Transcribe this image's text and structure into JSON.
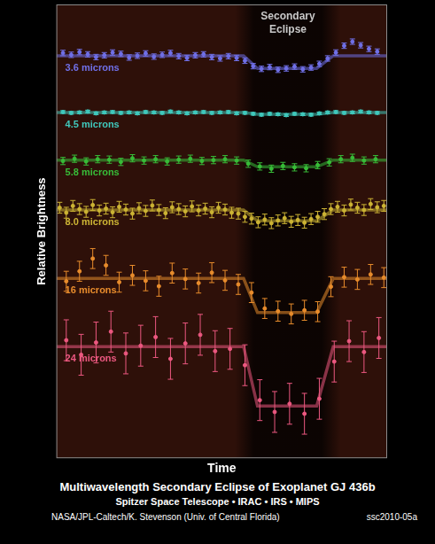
{
  "chart_data": {
    "type": "scatter",
    "title": "Multiwavelength Secondary Eclipse of Exoplanet GJ 436b",
    "subtitle": "Spitzer Space Telescope • IRAC • IRS • MIPS",
    "credit": "NASA/JPL-Caltech/K. Stevenson (Univ. of Central Florida)",
    "image_id": "ssc2010-05a",
    "x_label": "Time",
    "y_label": "Relative Brightness",
    "annotation": "Secondary Eclipse",
    "eclipse_window": [
      54,
      86
    ],
    "xlim": [
      0,
      100
    ],
    "ylim": [
      0,
      100
    ],
    "grid": false,
    "tick_labels": false,
    "series": [
      {
        "name": "3.6 microns",
        "color": "#7070e8",
        "error": 0.6,
        "x": [
          2,
          4.5,
          7,
          9.5,
          12,
          14.5,
          17,
          19.5,
          22,
          24.5,
          27,
          29.5,
          32,
          34.5,
          37,
          39.5,
          42,
          44.5,
          47,
          49.5,
          52,
          54.5,
          57,
          59.5,
          62,
          64.5,
          67,
          69.5,
          72,
          74.5,
          77,
          79.5,
          82,
          84.5,
          87,
          89.5,
          92,
          94.5,
          97
        ],
        "values": [
          89.3,
          88.9,
          89.5,
          89.0,
          88.4,
          88.8,
          89.4,
          89.1,
          88.3,
          88.7,
          89.2,
          88.5,
          88.9,
          89.3,
          88.6,
          88.2,
          88.8,
          89.0,
          88.4,
          88.1,
          88.6,
          88.2,
          87.6,
          86.4,
          85.8,
          86.2,
          85.6,
          85.9,
          86.3,
          85.7,
          86.1,
          86.9,
          88.1,
          89.4,
          90.9,
          91.8,
          91.0,
          90.2,
          89.6
        ],
        "model_x": [
          0,
          56.6,
          60.8,
          78.7,
          83.7,
          100
        ],
        "model_y": [
          88.7,
          88.7,
          85.9,
          85.9,
          88.7,
          88.7
        ]
      },
      {
        "name": "4.5 microns",
        "color": "#40c8bc",
        "error": 0.3,
        "x": [
          2,
          4.5,
          7,
          9.5,
          12,
          14.5,
          17,
          19.5,
          22,
          24.5,
          27,
          29.5,
          32,
          34.5,
          37,
          39.5,
          42,
          44.5,
          47,
          49.5,
          52,
          54.5,
          57,
          59.5,
          62,
          64.5,
          67,
          69.5,
          72,
          74.5,
          77,
          79.5,
          82,
          84.5,
          87,
          89.5,
          92,
          94.5,
          97
        ],
        "values": [
          76.3,
          76.1,
          76.2,
          76.4,
          76.0,
          76.2,
          76.3,
          76.1,
          76.2,
          76.0,
          76.3,
          76.2,
          76.1,
          76.4,
          76.2,
          76.0,
          76.2,
          76.3,
          76.1,
          76.2,
          76.3,
          76.0,
          76.1,
          75.9,
          75.7,
          75.9,
          75.8,
          75.6,
          75.9,
          75.8,
          75.7,
          76.0,
          76.2,
          76.3,
          76.1,
          76.2,
          76.4,
          76.2,
          76.1
        ],
        "model_x": [
          0,
          56.6,
          60.8,
          78.7,
          83.7,
          100
        ],
        "model_y": [
          76.2,
          76.2,
          75.8,
          75.8,
          76.2,
          76.2
        ]
      },
      {
        "name": "5.8 microns",
        "color": "#38bc38",
        "error": 0.8,
        "x": [
          2,
          5.5,
          9,
          12.5,
          16,
          19.5,
          23,
          26.5,
          30,
          33.5,
          37,
          40.5,
          44,
          47.5,
          51,
          54.5,
          58,
          61.5,
          65,
          68.5,
          72,
          75.5,
          79,
          82.5,
          86,
          89.5,
          93,
          96.5
        ],
        "values": [
          65.5,
          66.0,
          65.4,
          65.9,
          65.8,
          65.3,
          66.1,
          65.6,
          65.9,
          65.4,
          65.8,
          66.0,
          65.5,
          65.7,
          65.9,
          65.6,
          64.9,
          64.3,
          63.8,
          64.4,
          64.1,
          63.9,
          64.6,
          65.2,
          65.9,
          66.2,
          65.6,
          65.9
        ],
        "model_x": [
          0,
          56.6,
          60.8,
          78.7,
          83.7,
          100
        ],
        "model_y": [
          65.7,
          65.7,
          64.2,
          64.2,
          65.7,
          65.7
        ]
      },
      {
        "name": "8.0 microns",
        "color": "#ccb434",
        "error": 1.2,
        "x": [
          1,
          3,
          5,
          7,
          9,
          11,
          13,
          15,
          17,
          19,
          21,
          23,
          25,
          27,
          29,
          31,
          33,
          35,
          37,
          39,
          41,
          43,
          45,
          47,
          49,
          51,
          53,
          55,
          57,
          59,
          61,
          63,
          65,
          67,
          69,
          71,
          73,
          75,
          77,
          79,
          81,
          83,
          85,
          87,
          89,
          91,
          93,
          95,
          97,
          99
        ],
        "values": [
          55.2,
          54.1,
          55.6,
          54.9,
          54.3,
          55.8,
          54.6,
          55.0,
          54.2,
          55.4,
          54.8,
          53.9,
          55.1,
          54.5,
          55.7,
          54.7,
          54.0,
          55.3,
          54.9,
          54.4,
          55.5,
          54.6,
          55.0,
          54.2,
          55.2,
          54.8,
          54.1,
          53.9,
          53.2,
          52.8,
          52.0,
          52.6,
          51.8,
          52.4,
          52.9,
          52.1,
          52.5,
          51.9,
          52.7,
          53.2,
          53.8,
          54.9,
          55.4,
          54.6,
          55.9,
          55.2,
          54.7,
          56.0,
          55.3,
          55.6
        ],
        "model_x": [
          0,
          56.6,
          60.8,
          78.7,
          83.7,
          100
        ],
        "model_y": [
          54.7,
          54.7,
          52.3,
          52.3,
          54.7,
          54.7
        ]
      },
      {
        "name": "16 microns",
        "color": "#e88c2c",
        "error": 2.2,
        "x": [
          3,
          7,
          11,
          15,
          19,
          23,
          27,
          31,
          35,
          39,
          43,
          47,
          51,
          55,
          59,
          63,
          67,
          71,
          75,
          79,
          83,
          87,
          91,
          95,
          99
        ],
        "values": [
          39.0,
          41.2,
          44.0,
          42.5,
          38.8,
          40.3,
          39.1,
          37.9,
          40.8,
          39.5,
          38.6,
          40.9,
          39.2,
          38.3,
          36.5,
          33.0,
          32.4,
          31.8,
          32.6,
          32.3,
          37.8,
          39.9,
          39.4,
          40.5,
          39.8
        ],
        "model_x": [
          0,
          56.6,
          60.8,
          78.7,
          83.7,
          100
        ],
        "model_y": [
          39.6,
          39.6,
          32.1,
          32.1,
          39.6,
          39.6
        ]
      },
      {
        "name": "24 microns",
        "color": "#ec5880",
        "error": 4.5,
        "x": [
          3,
          7.5,
          12,
          16.5,
          21,
          25.5,
          30,
          34.5,
          39,
          43.5,
          48,
          52.5,
          57,
          61.5,
          66,
          70.5,
          75,
          79.5,
          84,
          88.5,
          93,
          97.5
        ],
        "values": [
          26.0,
          22.8,
          25.5,
          27.9,
          23.1,
          24.8,
          26.7,
          21.9,
          25.3,
          27.2,
          23.6,
          24.1,
          20.5,
          12.8,
          10.2,
          12.0,
          9.8,
          13.1,
          21.3,
          25.8,
          23.4,
          26.5
        ],
        "model_x": [
          0,
          56.6,
          60.8,
          78.7,
          83.7,
          100
        ],
        "model_y": [
          24.6,
          24.6,
          11.5,
          11.5,
          24.6,
          24.6
        ]
      }
    ]
  }
}
